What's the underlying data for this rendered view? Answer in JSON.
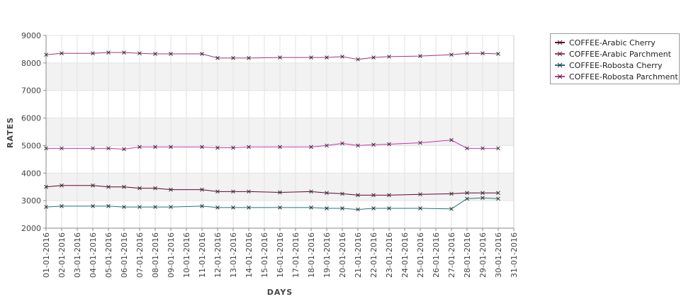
{
  "chart_data": {
    "type": "line",
    "title": "",
    "xlabel": "DAYS",
    "ylabel": "RATES",
    "ylim": [
      2000,
      9000
    ],
    "yticks": [
      2000,
      3000,
      4000,
      5000,
      6000,
      7000,
      8000,
      9000
    ],
    "grid": true,
    "legend_position": "top-right outside plot",
    "categories": [
      "01-01-2016",
      "02-01-2016",
      "03-01-2016",
      "04-01-2016",
      "05-01-2016",
      "06-01-2016",
      "07-01-2016",
      "08-01-2016",
      "09-01-2016",
      "10-01-2016",
      "11-01-2016",
      "12-01-2016",
      "13-01-2016",
      "14-01-2016",
      "15-01-2016",
      "16-01-2016",
      "17-01-2016",
      "18-01-2016",
      "19-01-2016",
      "20-01-2016",
      "21-01-2016",
      "22-01-2016",
      "23-01-2016",
      "24-01-2016",
      "25-01-2016",
      "26-01-2016",
      "27-01-2016",
      "28-01-2016",
      "29-01-2016",
      "30-01-2016",
      "31-01-2016"
    ],
    "series": [
      {
        "name": "COFFEE-Arabic Cherry",
        "color": "#660033",
        "x": [
          "01-01-2016",
          "02-01-2016",
          "04-01-2016",
          "05-01-2016",
          "06-01-2016",
          "07-01-2016",
          "08-01-2016",
          "09-01-2016",
          "11-01-2016",
          "12-01-2016",
          "13-01-2016",
          "14-01-2016",
          "16-01-2016",
          "18-01-2016",
          "19-01-2016",
          "20-01-2016",
          "21-01-2016",
          "22-01-2016",
          "23-01-2016",
          "25-01-2016",
          "27-01-2016",
          "28-01-2016",
          "29-01-2016",
          "30-01-2016"
        ],
        "values": [
          3500,
          3550,
          3550,
          3500,
          3500,
          3450,
          3450,
          3400,
          3400,
          3330,
          3330,
          3330,
          3300,
          3330,
          3280,
          3250,
          3200,
          3200,
          3200,
          3230,
          3250,
          3280,
          3280,
          3280
        ]
      },
      {
        "name": "COFFEE-Arabic Parchment",
        "color": "#aa3377",
        "x": [
          "01-01-2016",
          "02-01-2016",
          "04-01-2016",
          "05-01-2016",
          "06-01-2016",
          "07-01-2016",
          "08-01-2016",
          "09-01-2016",
          "11-01-2016",
          "12-01-2016",
          "13-01-2016",
          "14-01-2016",
          "16-01-2016",
          "18-01-2016",
          "19-01-2016",
          "20-01-2016",
          "21-01-2016",
          "22-01-2016",
          "23-01-2016",
          "25-01-2016",
          "27-01-2016",
          "28-01-2016",
          "29-01-2016",
          "30-01-2016"
        ],
        "values": [
          8300,
          8350,
          8350,
          8380,
          8380,
          8350,
          8330,
          8330,
          8330,
          8180,
          8180,
          8180,
          8200,
          8200,
          8200,
          8230,
          8130,
          8200,
          8230,
          8250,
          8300,
          8350,
          8350,
          8330
        ]
      },
      {
        "name": "COFFEE-Robosta Cherry",
        "color": "#1a7a7a",
        "x": [
          "01-01-2016",
          "02-01-2016",
          "04-01-2016",
          "05-01-2016",
          "06-01-2016",
          "07-01-2016",
          "08-01-2016",
          "09-01-2016",
          "11-01-2016",
          "12-01-2016",
          "13-01-2016",
          "14-01-2016",
          "16-01-2016",
          "18-01-2016",
          "19-01-2016",
          "20-01-2016",
          "21-01-2016",
          "22-01-2016",
          "23-01-2016",
          "25-01-2016",
          "27-01-2016",
          "28-01-2016",
          "29-01-2016",
          "30-01-2016"
        ],
        "values": [
          2770,
          2800,
          2800,
          2800,
          2770,
          2770,
          2770,
          2770,
          2800,
          2750,
          2750,
          2750,
          2750,
          2750,
          2720,
          2720,
          2680,
          2720,
          2720,
          2720,
          2700,
          3070,
          3100,
          3070
        ]
      },
      {
        "name": "COFFEE-Robosta Parchment",
        "color": "#cc33aa",
        "x": [
          "01-01-2016",
          "02-01-2016",
          "04-01-2016",
          "05-01-2016",
          "06-01-2016",
          "07-01-2016",
          "08-01-2016",
          "09-01-2016",
          "11-01-2016",
          "12-01-2016",
          "13-01-2016",
          "14-01-2016",
          "16-01-2016",
          "18-01-2016",
          "19-01-2016",
          "20-01-2016",
          "21-01-2016",
          "22-01-2016",
          "23-01-2016",
          "25-01-2016",
          "27-01-2016",
          "28-01-2016",
          "29-01-2016",
          "30-01-2016"
        ],
        "values": [
          4900,
          4900,
          4900,
          4900,
          4870,
          4950,
          4950,
          4950,
          4950,
          4920,
          4920,
          4950,
          4950,
          4950,
          5000,
          5080,
          5000,
          5030,
          5050,
          5100,
          5200,
          4900,
          4900,
          4900
        ]
      }
    ]
  }
}
